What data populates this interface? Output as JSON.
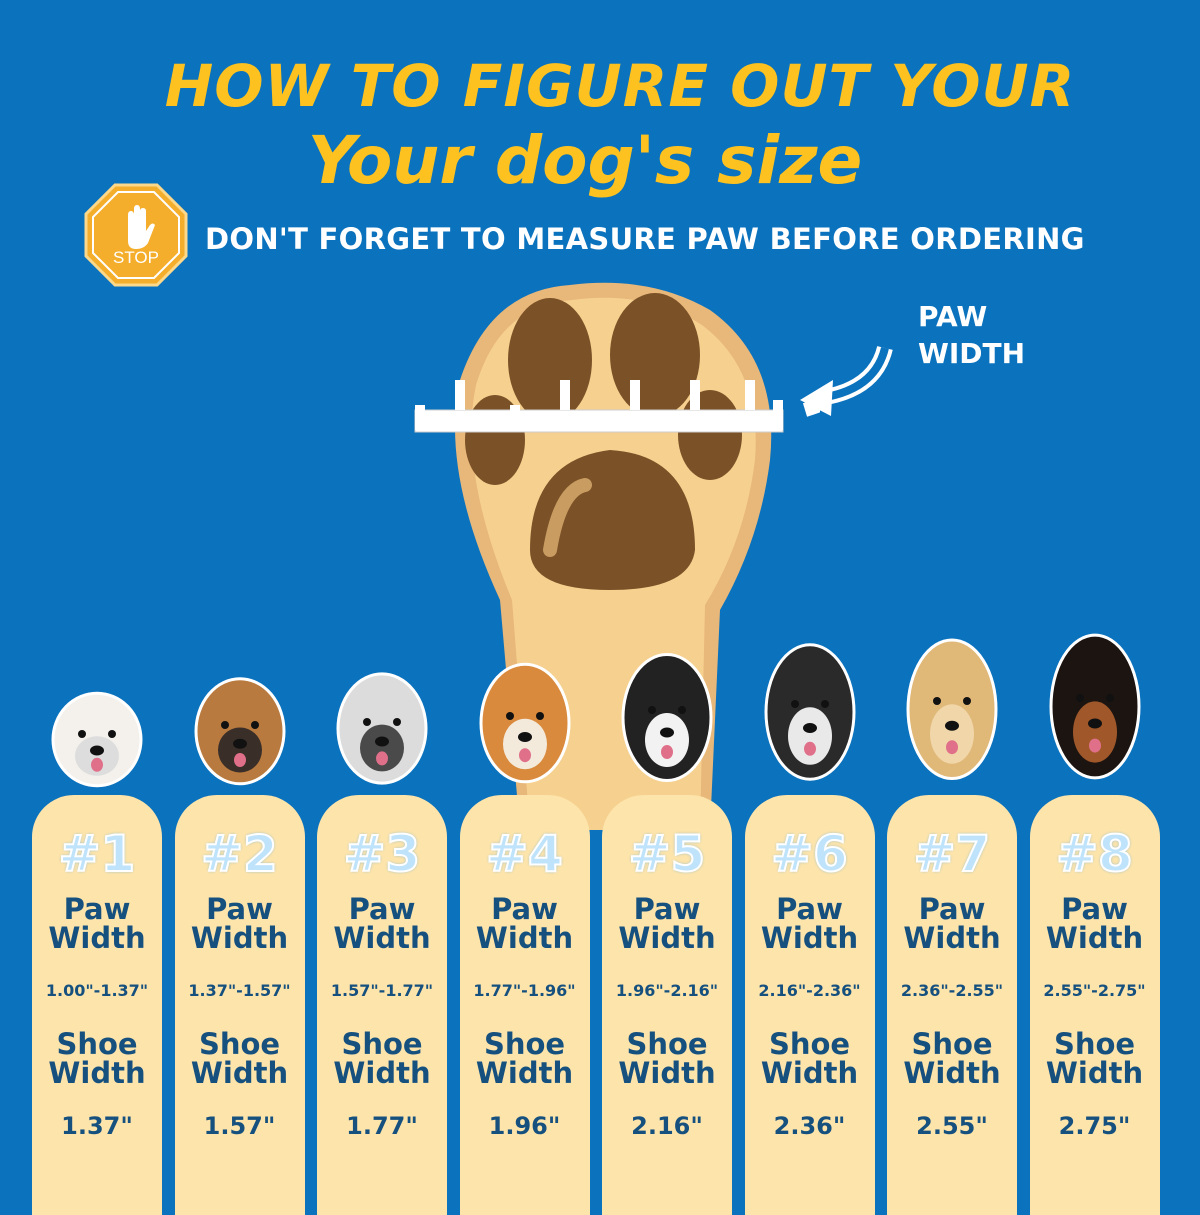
{
  "header": {
    "title_line1": "HOW TO FIGURE OUT YOUR",
    "title_line2": "Your dog's size",
    "stop_sign_text": "STOP",
    "subtitle": "DON'T FORGET TO MEASURE PAW BEFORE ORDERING"
  },
  "diagram": {
    "label_line1": "PAW",
    "label_line2": "WIDTH"
  },
  "colors": {
    "background": "#0b72bd",
    "title": "#fdc21f",
    "card": "#fde4ab",
    "card_text": "#16507e"
  },
  "sizes": [
    {
      "number": "#1",
      "paw_label": "Paw Width",
      "paw_range": "1.00\"-1.37\"",
      "shoe_label": "Shoe Width",
      "shoe_width": "1.37\""
    },
    {
      "number": "#2",
      "paw_label": "Paw Width",
      "paw_range": "1.37\"-1.57\"",
      "shoe_label": "Shoe Width",
      "shoe_width": "1.57\""
    },
    {
      "number": "#3",
      "paw_label": "Paw Width",
      "paw_range": "1.57\"-1.77\"",
      "shoe_label": "Shoe Width",
      "shoe_width": "1.77\""
    },
    {
      "number": "#4",
      "paw_label": "Paw Width",
      "paw_range": "1.77\"-1.96\"",
      "shoe_label": "Shoe Width",
      "shoe_width": "1.96\""
    },
    {
      "number": "#5",
      "paw_label": "Paw Width",
      "paw_range": "1.96\"-2.16\"",
      "shoe_label": "Shoe Width",
      "shoe_width": "2.16\""
    },
    {
      "number": "#6",
      "paw_label": "Paw Width",
      "paw_range": "2.16\"-2.36\"",
      "shoe_label": "Shoe Width",
      "shoe_width": "2.36\""
    },
    {
      "number": "#7",
      "paw_label": "Paw Width",
      "paw_range": "2.36\"-2.55\"",
      "shoe_label": "Shoe Width",
      "shoe_width": "2.55\""
    },
    {
      "number": "#8",
      "paw_label": "Paw Width",
      "paw_range": "2.55\"-2.75\"",
      "shoe_label": "Shoe Width",
      "shoe_width": "2.75\""
    }
  ]
}
